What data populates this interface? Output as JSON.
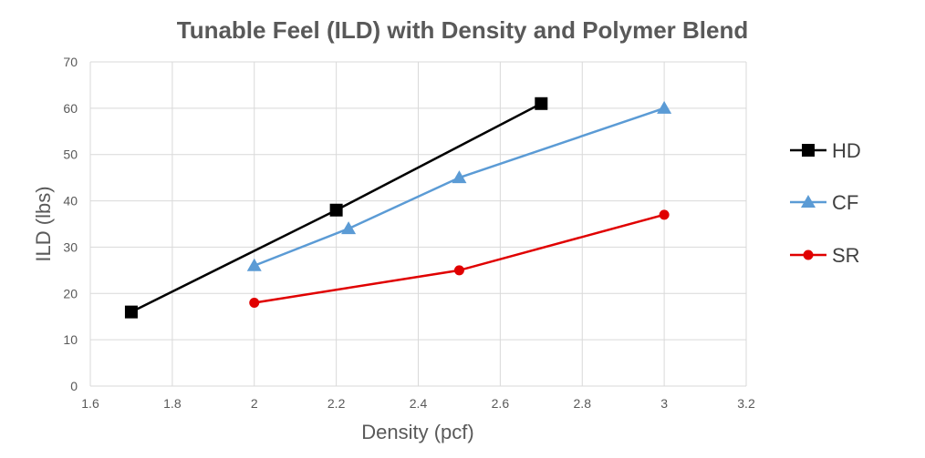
{
  "chart_data": {
    "type": "scatter",
    "title": "Tunable Feel (ILD) with Density and Polymer Blend",
    "xlabel": "Density (pcf)",
    "ylabel": "ILD (lbs)",
    "xlim": [
      1.6,
      3.2
    ],
    "ylim": [
      0,
      70
    ],
    "x_ticks": [
      "1.6",
      "1.8",
      "2",
      "2.2",
      "2.4",
      "2.6",
      "2.8",
      "3",
      "3.2"
    ],
    "y_ticks": [
      "0",
      "10",
      "20",
      "30",
      "40",
      "50",
      "60",
      "70"
    ],
    "grid": true,
    "legend_position": "right",
    "series": [
      {
        "name": "HD",
        "color": "#000000",
        "marker": "square",
        "x": [
          1.7,
          2.2,
          2.7
        ],
        "y": [
          16,
          38,
          61
        ]
      },
      {
        "name": "CF",
        "color": "#5b9bd5",
        "marker": "triangle",
        "x": [
          2.0,
          2.23,
          2.5,
          3.0
        ],
        "y": [
          26,
          34,
          45,
          60
        ]
      },
      {
        "name": "SR",
        "color": "#e00000",
        "marker": "circle",
        "x": [
          2.0,
          2.5,
          3.0
        ],
        "y": [
          18,
          25,
          37
        ]
      }
    ]
  }
}
